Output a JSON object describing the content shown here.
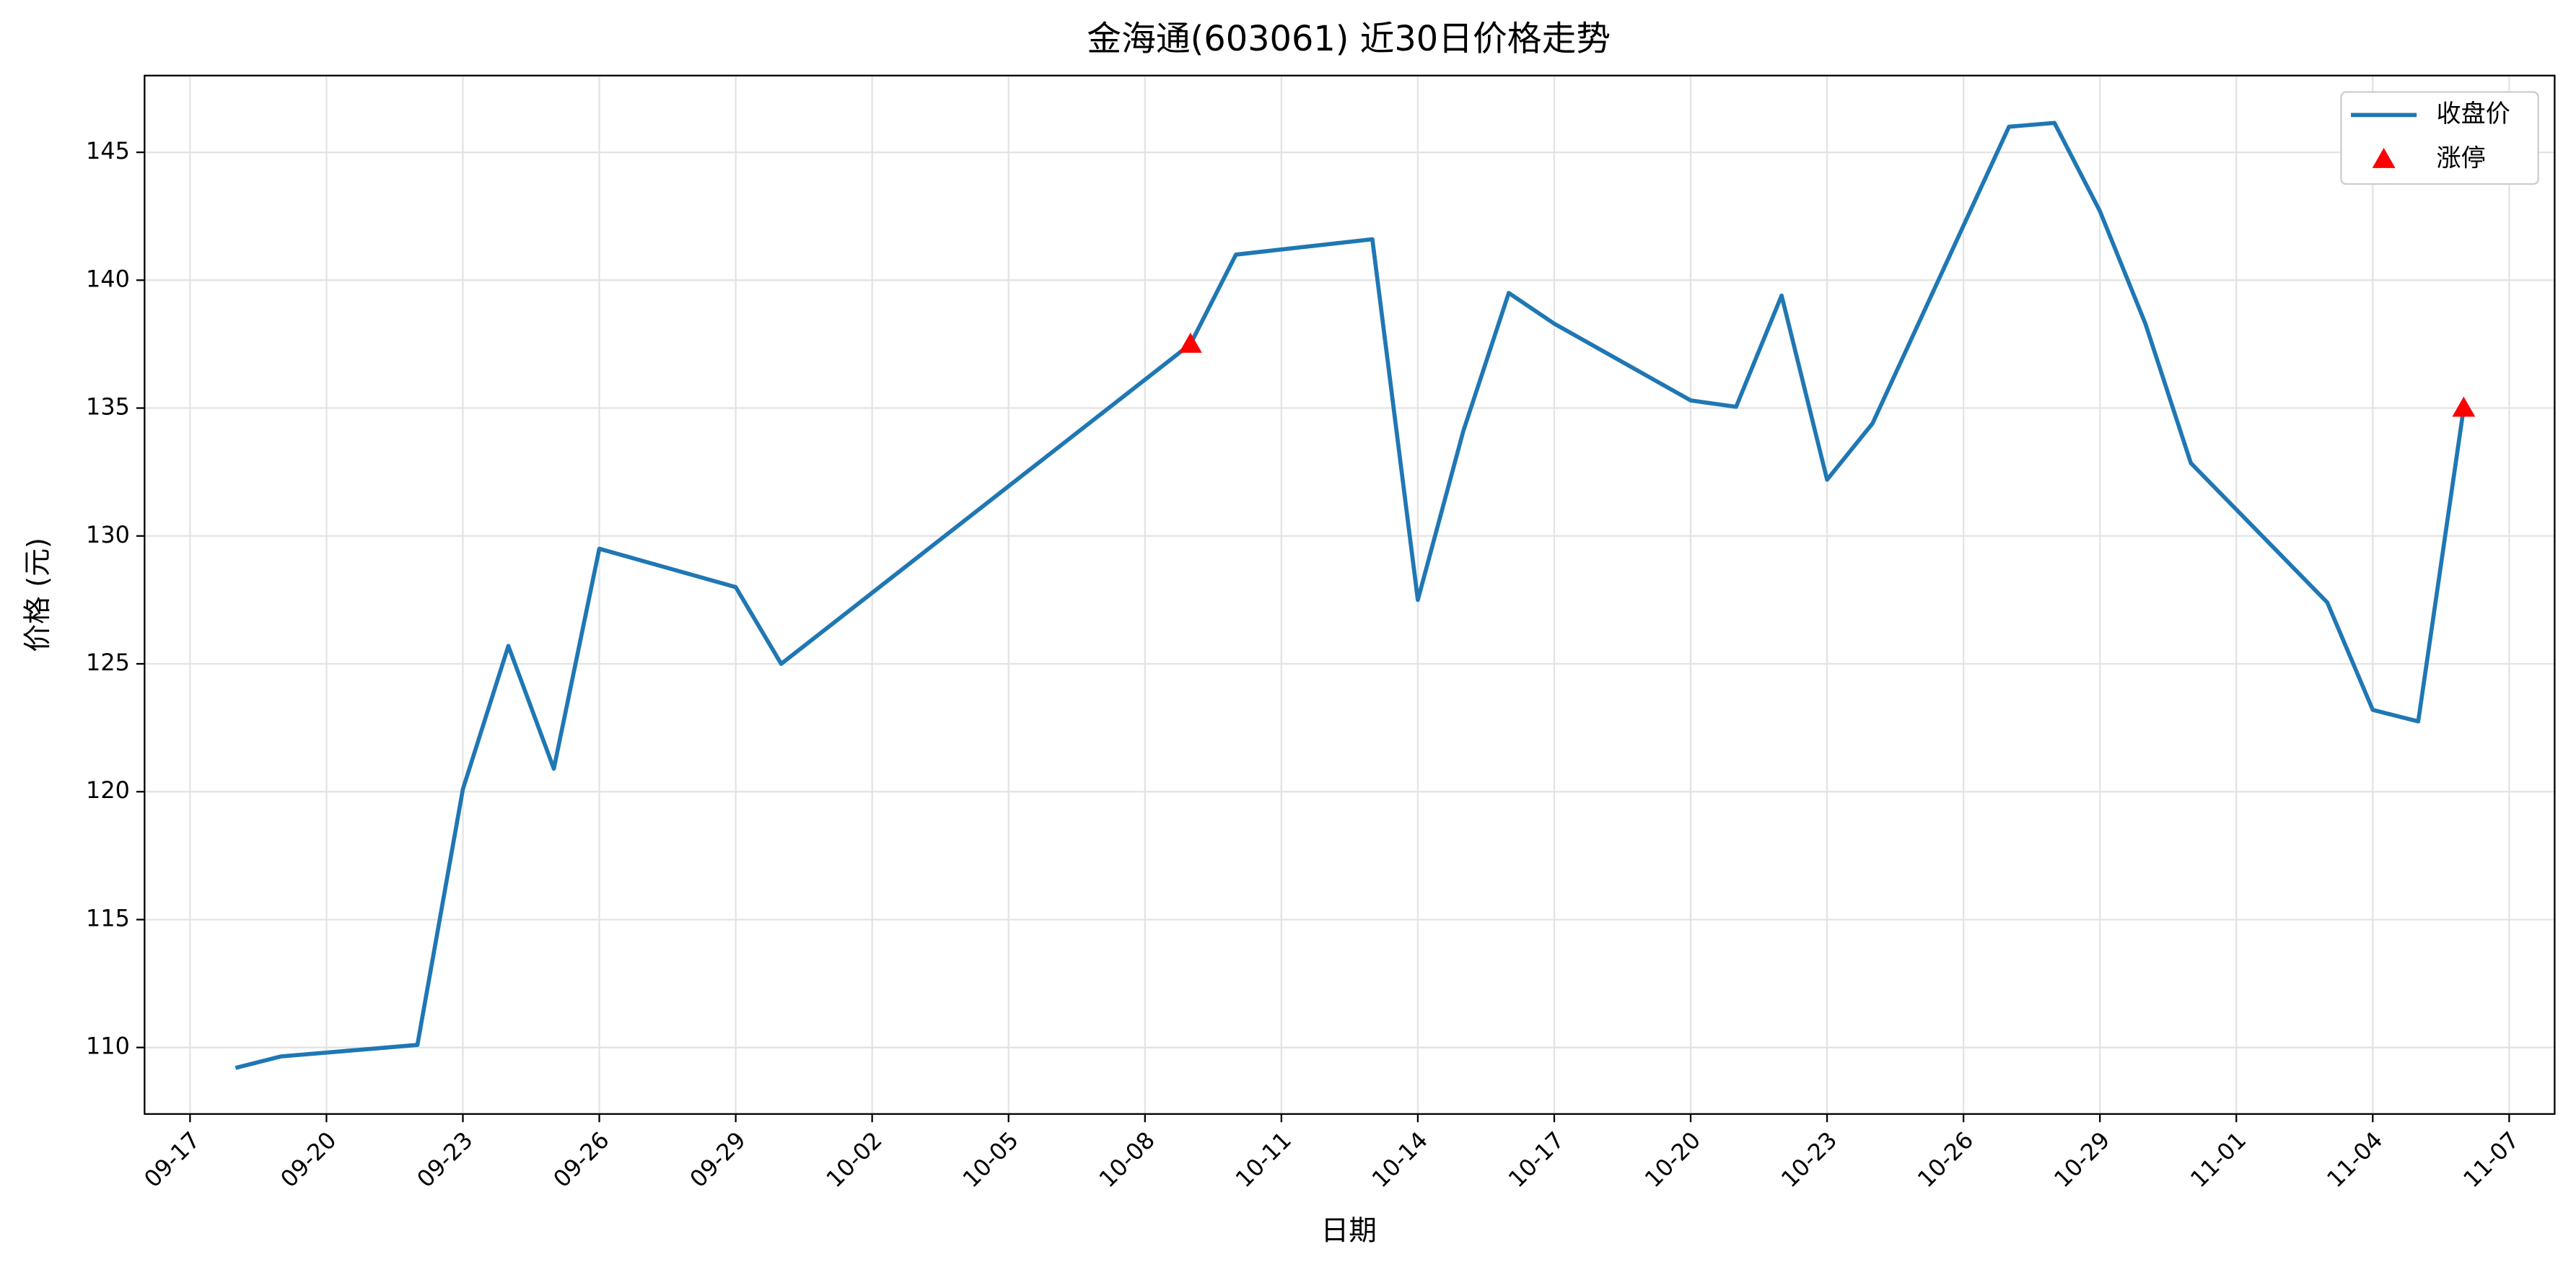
{
  "chart_data": {
    "type": "line",
    "title": "金海通(603061) 近30日价格走势",
    "xlabel": "日期",
    "ylabel": "价格 (元)",
    "xlim": [
      "09-16",
      "11-08"
    ],
    "xticks": [
      "09-17",
      "09-20",
      "09-23",
      "09-26",
      "09-29",
      "10-02",
      "10-05",
      "10-08",
      "10-11",
      "10-14",
      "10-17",
      "10-20",
      "10-23",
      "10-26",
      "10-29",
      "11-01",
      "11-04",
      "11-07"
    ],
    "ylim": [
      107.4,
      148
    ],
    "yticks": [
      110,
      115,
      120,
      125,
      130,
      135,
      140,
      145
    ],
    "grid": true,
    "legend": "upper right",
    "series": [
      {
        "name": "收盘价",
        "type": "line",
        "color": "#1f77b4",
        "x": [
          "09-18",
          "09-19",
          "09-22",
          "09-23",
          "09-24",
          "09-25",
          "09-26",
          "09-29",
          "09-30",
          "10-09",
          "10-10",
          "10-13",
          "10-14",
          "10-15",
          "10-16",
          "10-17",
          "10-20",
          "10-21",
          "10-22",
          "10-23",
          "10-24",
          "10-27",
          "10-28",
          "10-29",
          "10-30",
          "10-31",
          "11-03",
          "11-04",
          "11-05",
          "11-06"
        ],
        "values": [
          109.2,
          109.65,
          110.1,
          120.1,
          125.7,
          120.9,
          129.5,
          128.0,
          125.0,
          137.5,
          141.0,
          141.6,
          127.5,
          134.1,
          139.5,
          138.3,
          135.3,
          135.05,
          139.4,
          132.2,
          134.4,
          146.0,
          146.15,
          142.7,
          138.3,
          132.85,
          127.4,
          123.2,
          122.75,
          135.0
        ]
      },
      {
        "name": "涨停",
        "type": "scatter",
        "color": "#ff0000",
        "x": [
          "10-09",
          "11-06"
        ],
        "values": [
          137.5,
          135.0
        ]
      }
    ]
  }
}
